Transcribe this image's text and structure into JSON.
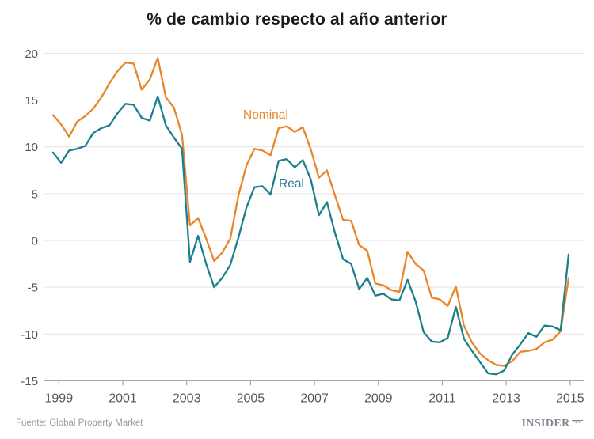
{
  "title": "% de cambio respecto al año anterior",
  "footer": {
    "source": "Fuente: Global Property Market",
    "logo_text": "INSIDER",
    "logo_suffix": "PRO"
  },
  "colors": {
    "nominal": "#e8862a",
    "real": "#1b7f8c",
    "grid": "#e4e4e4",
    "axis_line": "#a9a9a9",
    "tick_text": "#575757",
    "title_text": "#1a1a1a",
    "source_text": "#9b9b9b",
    "logo": "#7f8893",
    "background": "#ffffff"
  },
  "chart_data": {
    "type": "line",
    "title": "% de cambio respecto al año anterior",
    "x_unit": "quarterly",
    "x_range": [
      "1999 Q1",
      "2015 Q1"
    ],
    "x_tick_labels": [
      "1999",
      "2001",
      "2003",
      "2005",
      "2007",
      "2009",
      "2011",
      "2013",
      "2015"
    ],
    "y_ticks": [
      20,
      15,
      10,
      5,
      0,
      -5,
      -10,
      -15
    ],
    "y_tick_labels": [
      "20",
      "15",
      "10",
      "5",
      "0",
      "-5",
      "-10",
      "-15"
    ],
    "ylim": [
      -15,
      20
    ],
    "grid": "horizontal-only",
    "legend": "inline-labels-on-chart",
    "series": [
      {
        "name": "Nominal",
        "color_key": "nominal",
        "values": [
          13.4,
          12.4,
          11.1,
          12.7,
          13.3,
          14.1,
          15.3,
          16.8,
          18.1,
          19.0,
          18.9,
          16.1,
          17.2,
          19.5,
          15.3,
          14.2,
          11.3,
          1.6,
          2.4,
          0.2,
          -2.2,
          -1.3,
          0.2,
          4.8,
          8.0,
          9.8,
          9.6,
          9.1,
          12.0,
          12.2,
          11.6,
          12.1,
          9.7,
          6.7,
          7.5,
          4.8,
          2.2,
          2.1,
          -0.5,
          -1.1,
          -4.6,
          -4.8,
          -5.3,
          -5.5,
          -1.2,
          -2.5,
          -3.2,
          -6.1,
          -6.3,
          -7.0,
          -4.9,
          -9.1,
          -10.9,
          -12.1,
          -12.8,
          -13.3,
          -13.4,
          -12.9,
          -11.9,
          -11.8,
          -11.6,
          -10.9,
          -10.6,
          -9.7,
          -4.0
        ]
      },
      {
        "name": "Real",
        "color_key": "real",
        "values": [
          9.4,
          8.3,
          9.6,
          9.8,
          10.1,
          11.5,
          12.0,
          12.3,
          13.6,
          14.6,
          14.5,
          13.1,
          12.8,
          15.4,
          12.3,
          11.0,
          9.8,
          -2.3,
          0.5,
          -2.5,
          -5.0,
          -4.0,
          -2.6,
          0.3,
          3.5,
          5.7,
          5.8,
          4.9,
          8.5,
          8.7,
          7.8,
          8.6,
          6.5,
          2.7,
          4.1,
          0.8,
          -2.0,
          -2.5,
          -5.2,
          -4.0,
          -5.9,
          -5.7,
          -6.3,
          -6.4,
          -4.2,
          -6.5,
          -9.8,
          -10.8,
          -10.9,
          -10.4,
          -7.1,
          -10.5,
          -11.8,
          -13.0,
          -14.2,
          -14.3,
          -13.9,
          -12.2,
          -11.1,
          -9.9,
          -10.3,
          -9.1,
          -9.2,
          -9.6,
          -1.5
        ]
      }
    ]
  }
}
